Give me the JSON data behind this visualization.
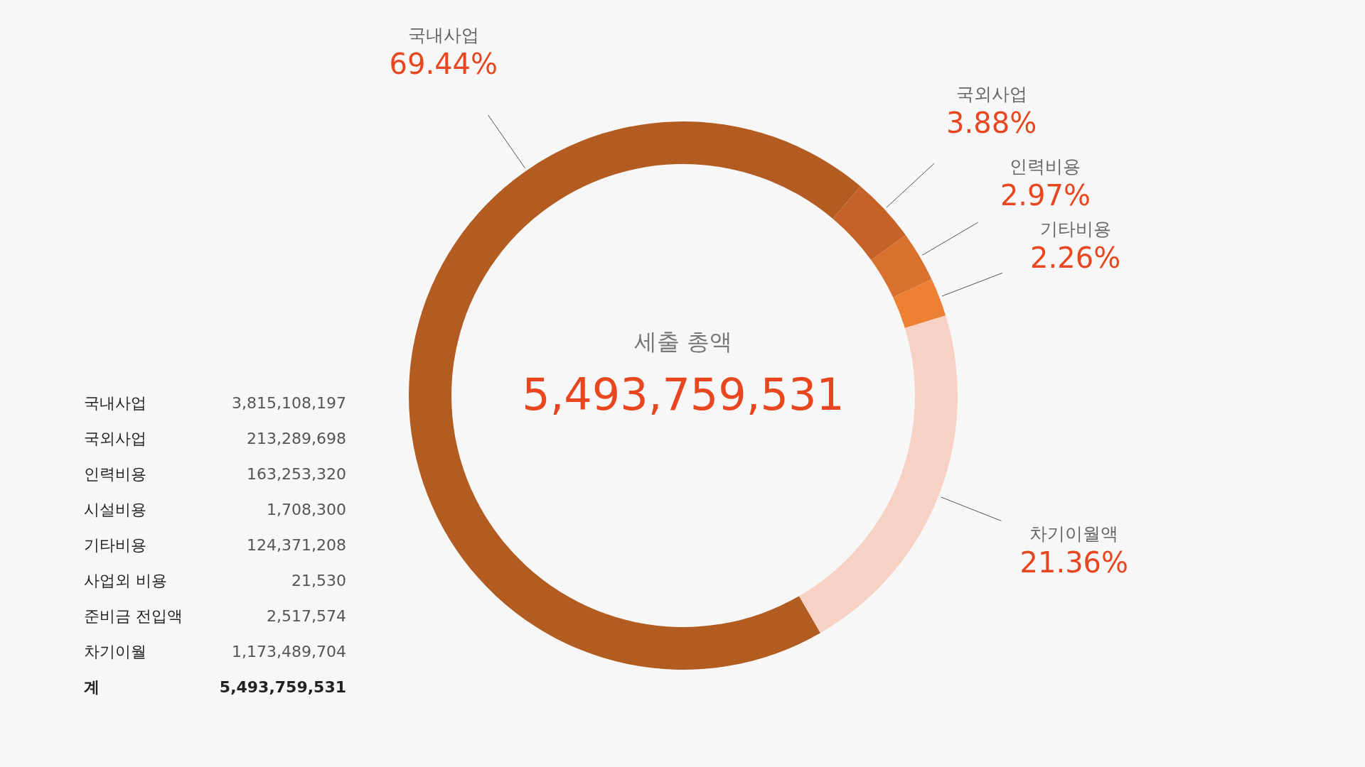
{
  "chart_data": [
    {
      "type": "donut",
      "title": "세출 총액",
      "subtitle": "5,493,759,531",
      "categories": [
        "국내사업",
        "국외사업",
        "인력비용",
        "기타비용",
        "차기이월액"
      ],
      "values": [
        69.44,
        3.88,
        2.97,
        2.26,
        21.36
      ],
      "colors": [
        "#b35c22",
        "#c46227",
        "#d9702e",
        "#ee8033",
        "#f7d1c3"
      ],
      "value_labels": [
        "69.44%",
        "3.88%",
        "2.97%",
        "2.26%",
        "21.36%"
      ]
    },
    {
      "type": "other",
      "categories": [
        "국내사업",
        "국외사업",
        "인력비용",
        "시설비용",
        "기타비용",
        "사업외 비용",
        "준비금 전입액",
        "차기이월",
        "계"
      ],
      "value_labels": [
        "3,815,108,197",
        "213,289,698",
        "163,253,320",
        "1,708,300",
        "124,371,208",
        "21,530",
        "2,517,574",
        "1,173,489,704",
        "5,493,759,531"
      ]
    }
  ]
}
